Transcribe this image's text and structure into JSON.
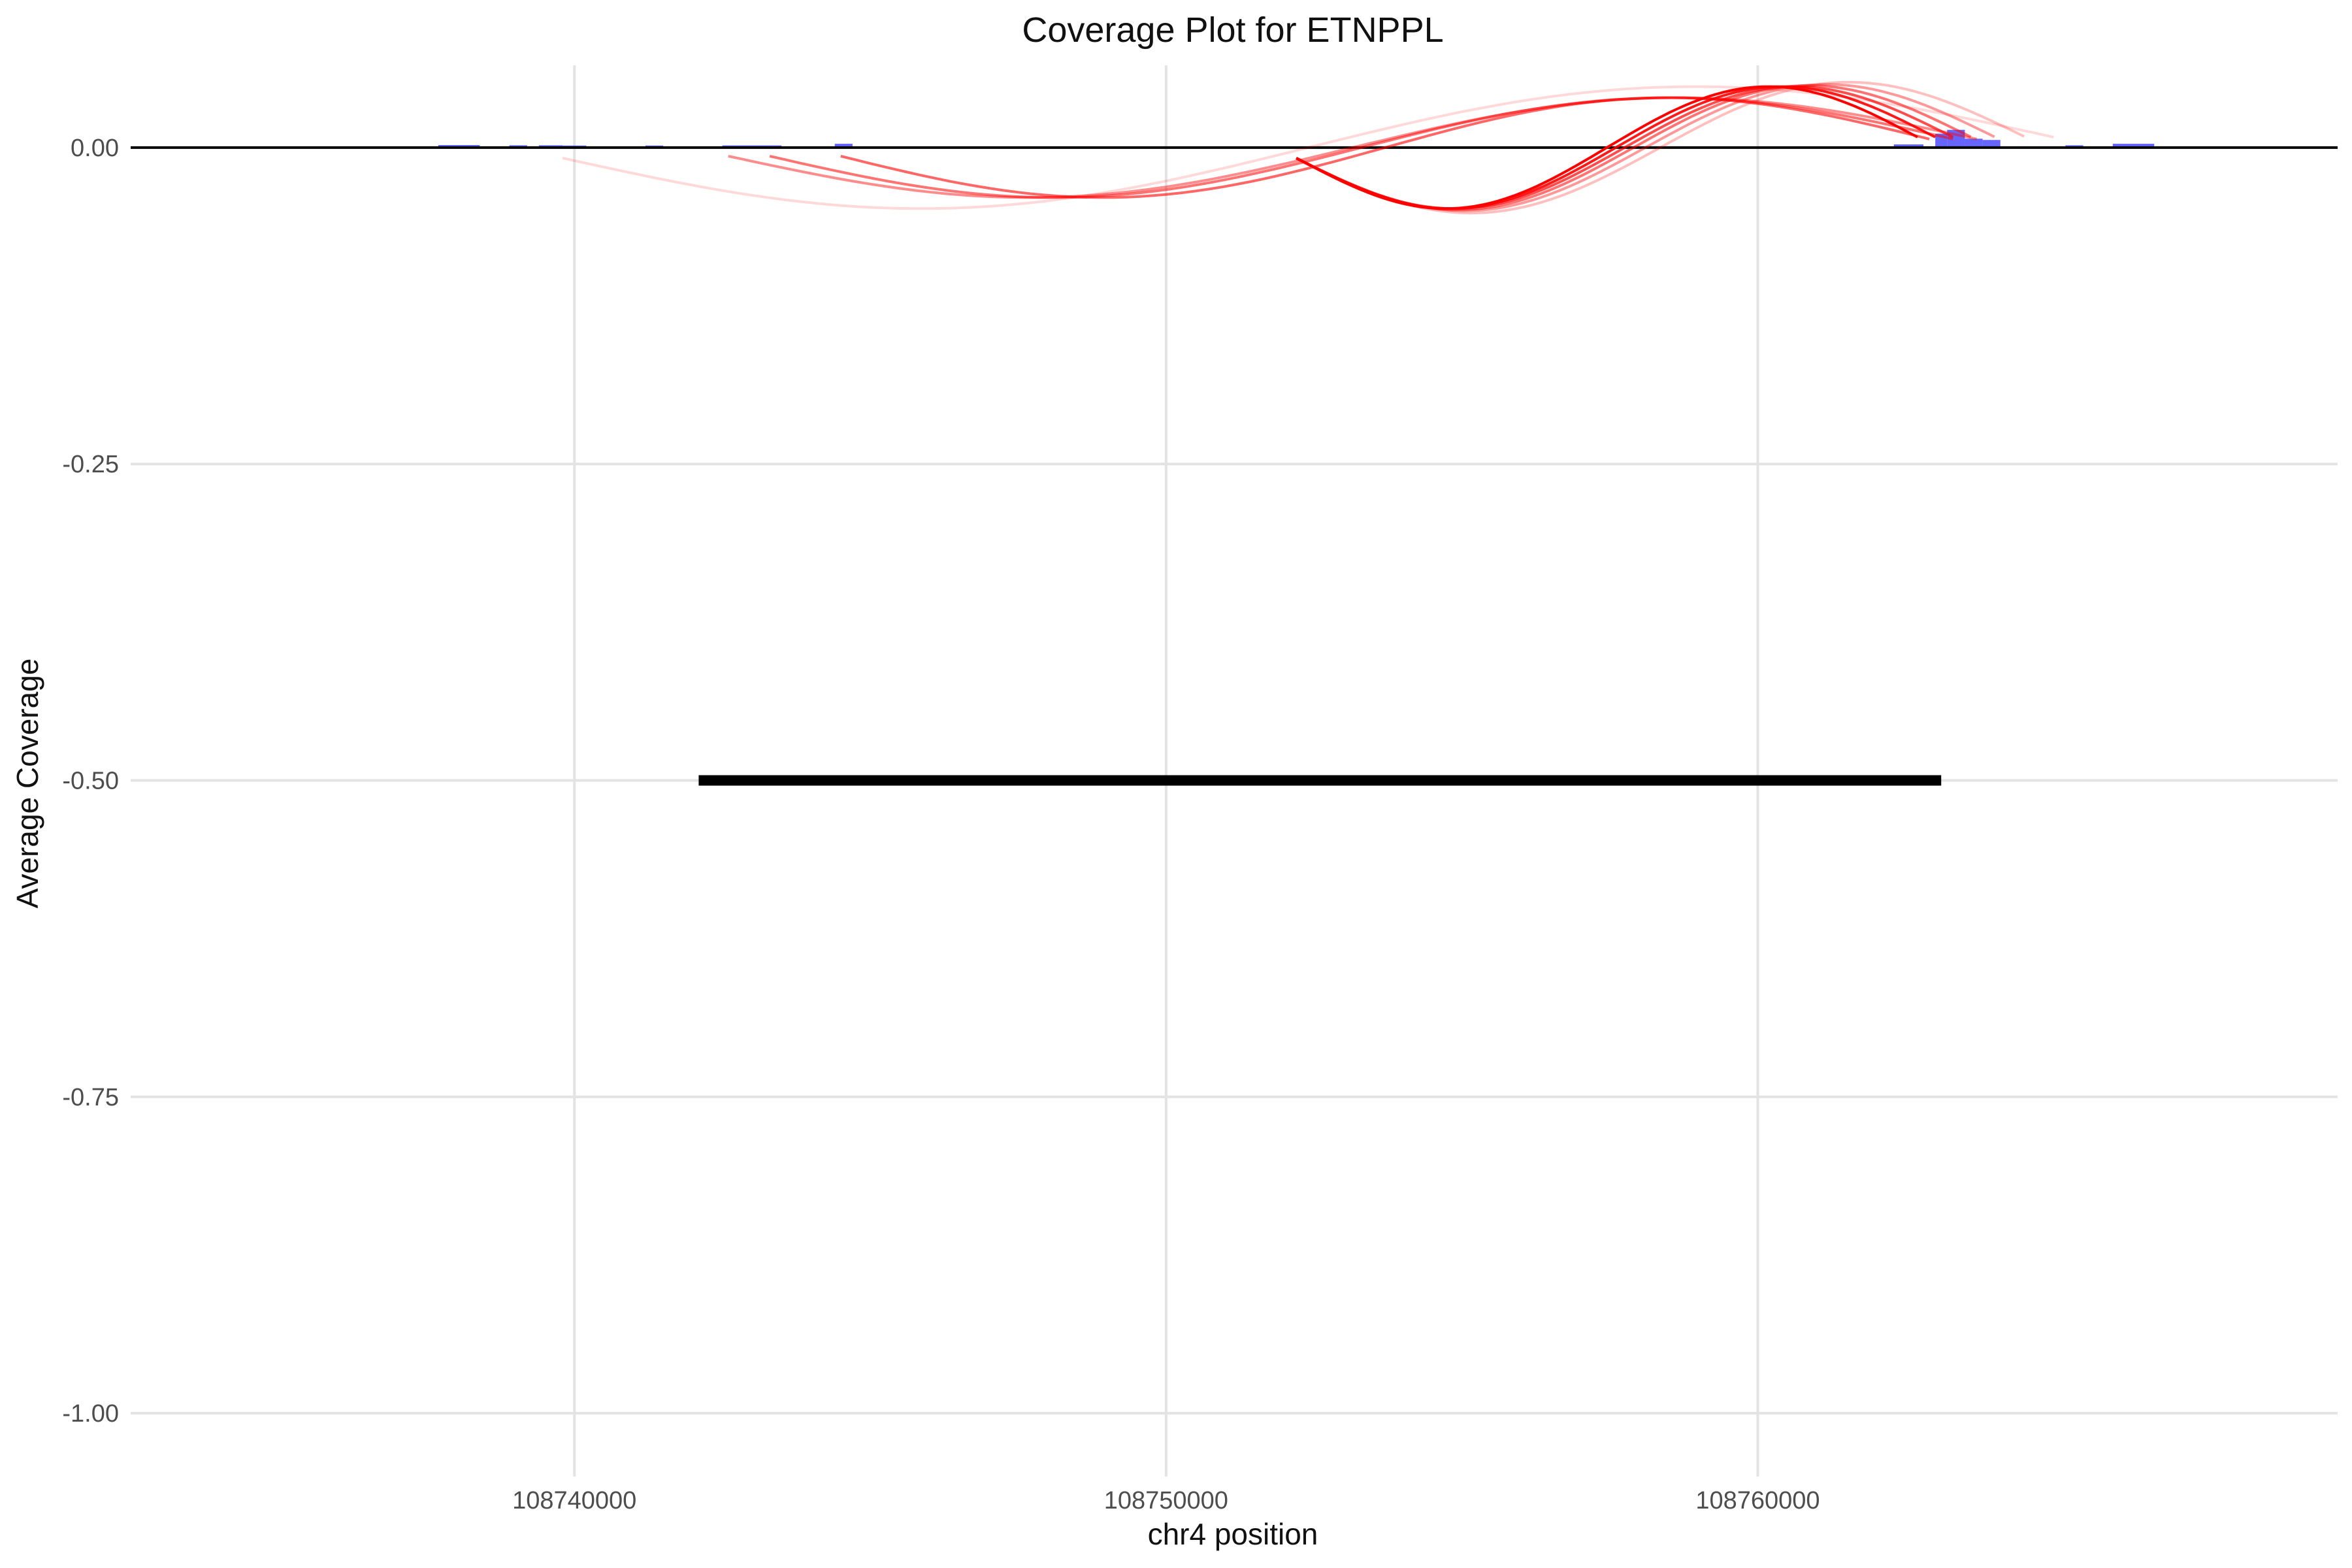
{
  "chart_data": {
    "type": "line",
    "title": "Coverage Plot for ETNPPL",
    "xlabel": "chr4 position",
    "ylabel": "Average Coverage",
    "xlim": [
      108732500,
      108769800
    ],
    "ylim": [
      -1.05,
      0.065
    ],
    "x_ticks": [
      108740000,
      108750000,
      108760000
    ],
    "x_tick_labels": [
      "108740000",
      "108750000",
      "108760000"
    ],
    "y_ticks": [
      0.0,
      -0.25,
      -0.5,
      -0.75,
      -1.0
    ],
    "y_tick_labels": [
      "0.00",
      "-0.25",
      "-0.50",
      "-0.75",
      "-1.00"
    ],
    "grid": true,
    "baseline_y": 0.0,
    "coverage_bars": {
      "color": "#3333ff",
      "bars": [
        {
          "start": 108737700,
          "end": 108738400,
          "value": 0.001
        },
        {
          "start": 108738900,
          "end": 108739200,
          "value": 0.0008
        },
        {
          "start": 108739400,
          "end": 108739800,
          "value": 0.0008
        },
        {
          "start": 108739800,
          "end": 108740200,
          "value": 0.0006
        },
        {
          "start": 108741200,
          "end": 108741500,
          "value": 0.0006
        },
        {
          "start": 108742500,
          "end": 108743500,
          "value": 0.0007
        },
        {
          "start": 108744400,
          "end": 108744700,
          "value": 0.002
        },
        {
          "start": 108762300,
          "end": 108762800,
          "value": 0.0015
        },
        {
          "start": 108763000,
          "end": 108763200,
          "value": 0.01
        },
        {
          "start": 108763200,
          "end": 108763500,
          "value": 0.013
        },
        {
          "start": 108763500,
          "end": 108763800,
          "value": 0.006
        },
        {
          "start": 108763800,
          "end": 108764100,
          "value": 0.005
        },
        {
          "start": 108765200,
          "end": 108765500,
          "value": 0.0008
        },
        {
          "start": 108766000,
          "end": 108766700,
          "value": 0.002
        }
      ]
    },
    "junction_arcs": {
      "color": "#ff0000",
      "arcs": [
        {
          "start": 108739800,
          "end": 108765000,
          "height": 0.055,
          "opacity": 0.15
        },
        {
          "start": 108742600,
          "end": 108763700,
          "height": 0.045,
          "opacity": 0.45
        },
        {
          "start": 108743300,
          "end": 108763300,
          "height": 0.045,
          "opacity": 0.55
        },
        {
          "start": 108744500,
          "end": 108762900,
          "height": 0.045,
          "opacity": 0.6
        },
        {
          "start": 108752200,
          "end": 108762700,
          "height": 0.055,
          "opacity": 1.0
        },
        {
          "start": 108752200,
          "end": 108763000,
          "height": 0.055,
          "opacity": 0.9
        },
        {
          "start": 108752200,
          "end": 108763300,
          "height": 0.055,
          "opacity": 0.7
        },
        {
          "start": 108752200,
          "end": 108763600,
          "height": 0.056,
          "opacity": 0.55
        },
        {
          "start": 108752200,
          "end": 108764000,
          "height": 0.057,
          "opacity": 0.4
        },
        {
          "start": 108752200,
          "end": 108764500,
          "height": 0.059,
          "opacity": 0.25
        }
      ]
    },
    "gene_model": {
      "start": 108742100,
      "end": 108763100,
      "y": -0.5,
      "color": "#000000"
    }
  }
}
